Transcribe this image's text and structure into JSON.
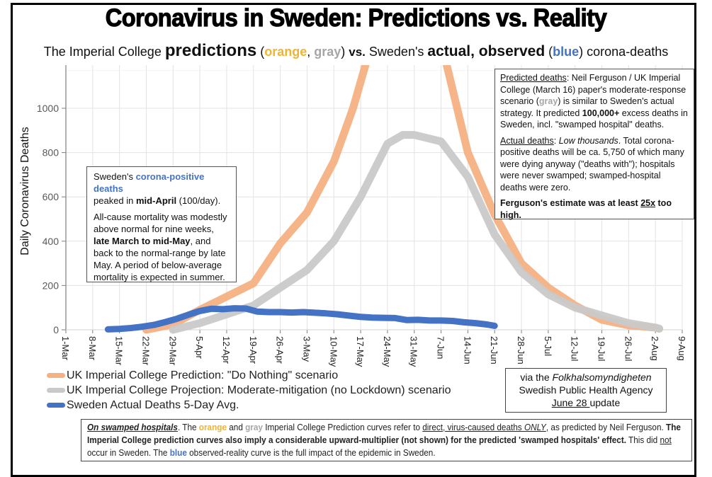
{
  "header": {
    "title": "Coronavirus in Sweden: Predictions vs. Reality",
    "subtitle": {
      "part1": "The Imperial College ",
      "predictions": "predictions",
      "paren_open": " (",
      "orange": "orange",
      "comma": ", ",
      "gray": "gray",
      "paren_close": ") ",
      "vs": "vs.",
      "part2": " Sweden's ",
      "actual": "actual, observed",
      "paren_open2": " (",
      "blue": "blue",
      "paren_close2": ") corona-deaths"
    }
  },
  "colors": {
    "orange_series": "#f4b183",
    "gray_series": "#c9c9c9",
    "blue_series": "#4472c4",
    "orange_text": "#f0b432",
    "gray_text": "#a6a6a6",
    "blue_text": "#4472c4",
    "grid": "#e3e3e3"
  },
  "chart_data": {
    "type": "line",
    "title": "Coronavirus in Sweden: Predictions vs. Reality",
    "xlabel": "",
    "ylabel": "Daily  Coronavirus Deaths",
    "x_unit": "days since 1-Mar-2020",
    "xlim": [
      0,
      161
    ],
    "ylim": [
      0,
      1170
    ],
    "grid": true,
    "y_ticks": [
      0,
      200,
      400,
      600,
      800,
      1000
    ],
    "x_tick_labels": [
      "1-Mar",
      "8-Mar",
      "15-Mar",
      "22-Mar",
      "29-Mar",
      "5-Apr",
      "12-Apr",
      "19-Apr",
      "26-Apr",
      "3-May",
      "10-May",
      "17-May",
      "24-May",
      "31-May",
      "7-Jun",
      "14-Jun",
      "21-Jun",
      "28-Jun",
      "5-Jul",
      "12-Jul",
      "19-Jul",
      "26-Jul",
      "2-Aug",
      "9-Aug"
    ],
    "legend_position": "bottom-left",
    "series": [
      {
        "name": "UK Imperial College Prediction: \"Do Nothing\" scenario",
        "color": "#f4b183",
        "x": [
          21,
          28,
          35,
          42,
          49,
          56,
          63,
          70,
          75,
          80,
          98,
          105,
          112,
          119,
          126,
          133,
          140,
          147,
          154,
          155
        ],
        "y": [
          0,
          25,
          90,
          150,
          210,
          390,
          530,
          760,
          1000,
          1300,
          1300,
          800,
          520,
          300,
          190,
          110,
          45,
          20,
          10,
          5
        ]
      },
      {
        "name": "UK Imperial College Projection: Moderate-mitigation (no Lockdown) scenario",
        "color": "#c9c9c9",
        "x": [
          28,
          35,
          42,
          49,
          56,
          63,
          70,
          77,
          84,
          88,
          91,
          98,
          105,
          112,
          119,
          126,
          133,
          140,
          147,
          154,
          155
        ],
        "y": [
          0,
          30,
          70,
          110,
          190,
          270,
          400,
          600,
          840,
          880,
          880,
          850,
          690,
          430,
          260,
          160,
          100,
          65,
          30,
          10,
          5
        ]
      },
      {
        "name": "Sweden Actual Deaths 5-Day Avg.",
        "color": "#4472c4",
        "x": [
          11,
          14,
          17,
          20,
          23,
          26,
          29,
          32,
          35,
          38,
          41,
          44,
          47,
          50,
          53,
          56,
          59,
          62,
          65,
          68,
          71,
          74,
          77,
          80,
          83,
          86,
          89,
          92,
          95,
          98,
          101,
          104,
          107,
          110,
          112
        ],
        "y": [
          2,
          4,
          8,
          14,
          22,
          35,
          50,
          68,
          85,
          95,
          93,
          97,
          96,
          82,
          80,
          80,
          78,
          80,
          77,
          74,
          70,
          64,
          58,
          55,
          54,
          53,
          44,
          45,
          42,
          42,
          40,
          34,
          30,
          24,
          18
        ]
      }
    ],
    "annotations": []
  },
  "annotation_left": {
    "p1_a": "Sweden's ",
    "p1_b": "corona-positive  deaths",
    "p1_c": "peaked in ",
    "p1_d": "mid-April",
    "p1_e": " (100/day).",
    "p2_a": "All-cause mortality was modestly above normal for nine weeks, ",
    "p2_b": "late March to mid-May",
    "p2_c": ", and back to the normal-range  by late May. A period of below-average mortality is expected  in summer."
  },
  "annotation_right": {
    "p1_a": "Predicted deaths",
    "p1_b": ": Neil Ferguson / UK Imperial College (March 16) paper's moderate-response scenario (",
    "p1_c": "gray",
    "p1_d": ") is similar to Sweden's actual strategy. It predicted ",
    "p1_e": "100,000+",
    "p1_f": " excess deaths in Sweden, incl. \"swamped hospital\" deaths.",
    "p2_a": "Actual deaths",
    "p2_b": ": ",
    "p2_c": "Low thousands",
    "p2_d": ". Total corona-positive deaths will be ca. 5,750 of which many were dying anyway (\"deaths with\"); hospitals were never swamped; swamped-hospital deaths were zero.",
    "p3_a": "Ferguson's estimate was at least ",
    "p3_b": "25x",
    "p3_c": " too high."
  },
  "legend": {
    "items": [
      {
        "label": "UK Imperial College Prediction: \"Do Nothing\" scenario",
        "color": "#f4b183"
      },
      {
        "label": "UK Imperial College Projection: Moderate-mitigation (no Lockdown) scenario",
        "color": "#c9c9c9"
      },
      {
        "label": "Sweden Actual Deaths 5-Day Avg.",
        "color": "#4472c4"
      }
    ]
  },
  "source": {
    "line1_a": "via the ",
    "line1_b": "Folkhalsomyndigheten",
    "line2": "Swedish Public Health Agency",
    "line3_a": "June 28 ",
    "line3_b": "update"
  },
  "note": {
    "a": "On swamped hospitals",
    "b": ". The ",
    "c": "orange",
    "d": " and ",
    "e": "gray",
    "f": " Imperial College Prediction curves refer to ",
    "g": "direct, virus-caused deaths ",
    "h": "ONLY",
    "i": ", as predicted by Neil Ferguson. ",
    "j": "The Imperial College prediction curves also imply a considerable upward-multiplier (not shown) for the predicted 'swamped hospitals' effect.",
    "k": " This did ",
    "l": "not",
    "m": " occur in Sweden. The ",
    "n": "blue",
    "o": " observed-reality curve is the full impact of the epidemic in Sweden."
  }
}
